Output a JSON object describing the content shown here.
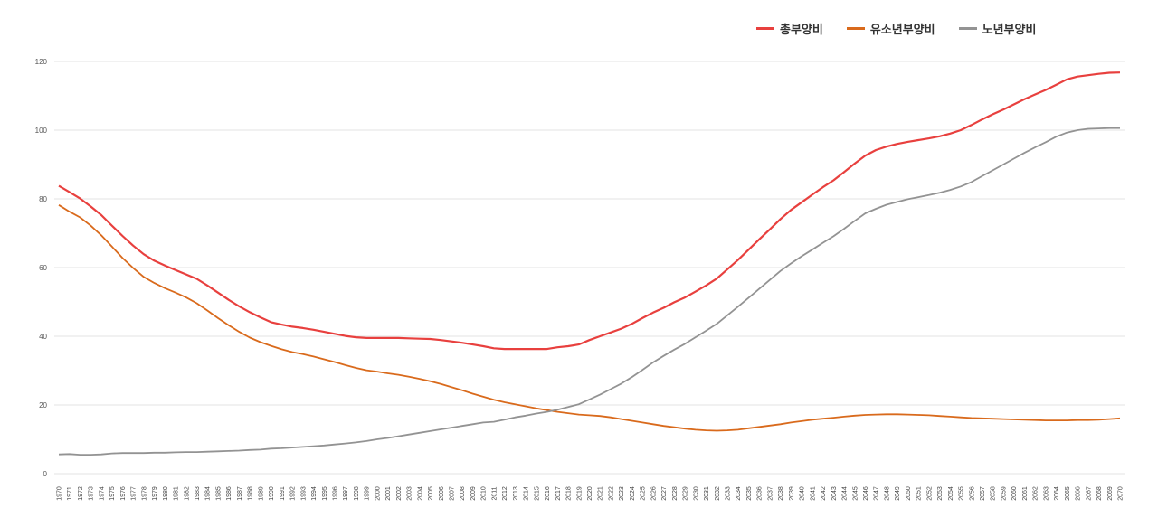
{
  "chart_data": {
    "type": "line",
    "title": "",
    "xlabel": "",
    "ylabel": "",
    "ylim": [
      0,
      120
    ],
    "yticks": [
      0,
      20,
      40,
      60,
      80,
      100,
      120
    ],
    "grid": true,
    "legend_position": "top-right",
    "x": [
      "1970",
      "1971",
      "1972",
      "1973",
      "1974",
      "1975",
      "1976",
      "1977",
      "1978",
      "1979",
      "1980",
      "1981",
      "1982",
      "1983",
      "1984",
      "1985",
      "1986",
      "1987",
      "1988",
      "1989",
      "1990",
      "1991",
      "1992",
      "1993",
      "1994",
      "1995",
      "1996",
      "1997",
      "1998",
      "1999",
      "2000",
      "2001",
      "2002",
      "2003",
      "2004",
      "2005",
      "2006",
      "2007",
      "2008",
      "2009",
      "2010",
      "2011",
      "2012",
      "2013",
      "2014",
      "2015",
      "2016",
      "2017",
      "2018",
      "2019",
      "2020",
      "2021",
      "2022",
      "2023",
      "2024",
      "2025",
      "2026",
      "2027",
      "2028",
      "2029",
      "2030",
      "2031",
      "2032",
      "2033",
      "2034",
      "2035",
      "2036",
      "2037",
      "2038",
      "2039",
      "2040",
      "2041",
      "2042",
      "2043",
      "2044",
      "2045",
      "2046",
      "2047",
      "2048",
      "2049",
      "2050",
      "2051",
      "2052",
      "2053",
      "2054",
      "2055",
      "2056",
      "2057",
      "2058",
      "2059",
      "2060",
      "2061",
      "2062",
      "2063",
      "2064",
      "2065",
      "2066",
      "2067",
      "2068",
      "2069",
      "2070"
    ],
    "series": [
      {
        "name": "총부양비",
        "color": "#e8403e",
        "values": [
          83.8,
          82,
          80.1,
          77.8,
          75.3,
          72.2,
          69.2,
          66.4,
          63.9,
          62,
          60.6,
          59.3,
          58,
          56.7,
          54.8,
          52.7,
          50.6,
          48.7,
          47,
          45.5,
          44.1,
          43.4,
          42.8,
          42.4,
          41.9,
          41.3,
          40.7,
          40.1,
          39.7,
          39.5,
          39.5,
          39.5,
          39.5,
          39.4,
          39.3,
          39.2,
          38.9,
          38.5,
          38.1,
          37.6,
          37.1,
          36.5,
          36.3,
          36.3,
          36.3,
          36.3,
          36.3,
          36.8,
          37.1,
          37.6,
          38.9,
          40,
          41.1,
          42.2,
          43.6,
          45.3,
          46.9,
          48.3,
          49.9,
          51.3,
          53,
          54.8,
          56.8,
          59.5,
          62.2,
          65.2,
          68.2,
          71.1,
          74.1,
          76.8,
          79,
          81.2,
          83.4,
          85.4,
          87.8,
          90.3,
          92.6,
          94.2,
          95.2,
          96,
          96.6,
          97.1,
          97.6,
          98.2,
          99,
          100,
          101.5,
          103.1,
          104.6,
          106,
          107.5,
          109,
          110.4,
          111.7,
          113.2,
          114.8,
          115.6,
          116,
          116.4,
          116.7,
          116.8
        ]
      },
      {
        "name": "유소년부양비",
        "color": "#d96a1c",
        "values": [
          78.2,
          76.3,
          74.6,
          72.2,
          69.4,
          66.1,
          62.8,
          59.9,
          57.3,
          55.5,
          54,
          52.7,
          51.3,
          49.6,
          47.5,
          45.3,
          43.2,
          41.3,
          39.6,
          38.3,
          37.2,
          36.2,
          35.4,
          34.8,
          34.1,
          33.3,
          32.5,
          31.6,
          30.8,
          30.1,
          29.7,
          29.2,
          28.8,
          28.2,
          27.6,
          26.9,
          26.1,
          25.2,
          24.3,
          23.3,
          22.4,
          21.5,
          20.8,
          20.2,
          19.6,
          19,
          18.5,
          18,
          17.6,
          17.2,
          17,
          16.8,
          16.4,
          15.9,
          15.4,
          14.9,
          14.4,
          13.9,
          13.5,
          13.1,
          12.8,
          12.6,
          12.5,
          12.6,
          12.8,
          13.2,
          13.6,
          14,
          14.4,
          14.9,
          15.3,
          15.7,
          16,
          16.3,
          16.6,
          16.9,
          17.1,
          17.2,
          17.3,
          17.3,
          17.2,
          17.1,
          17,
          16.8,
          16.6,
          16.4,
          16.2,
          16.1,
          16,
          15.9,
          15.8,
          15.7,
          15.6,
          15.5,
          15.5,
          15.5,
          15.6,
          15.6,
          15.7,
          15.9,
          16.1
        ]
      },
      {
        "name": "노년부양비",
        "color": "#939393",
        "values": [
          5.6,
          5.7,
          5.5,
          5.5,
          5.6,
          5.9,
          6,
          6,
          6,
          6.1,
          6.1,
          6.2,
          6.3,
          6.3,
          6.4,
          6.5,
          6.6,
          6.7,
          6.9,
          7,
          7.3,
          7.4,
          7.6,
          7.8,
          8,
          8.2,
          8.5,
          8.8,
          9.1,
          9.5,
          10,
          10.4,
          10.9,
          11.4,
          11.9,
          12.4,
          12.9,
          13.4,
          13.9,
          14.4,
          14.9,
          15.1,
          15.7,
          16.4,
          16.9,
          17.5,
          18,
          18.6,
          19.4,
          20.2,
          21.6,
          23,
          24.6,
          26.2,
          28.1,
          30.2,
          32.4,
          34.3,
          36.1,
          37.8,
          39.7,
          41.6,
          43.6,
          46.1,
          48.6,
          51.2,
          53.8,
          56.4,
          59,
          61.2,
          63.3,
          65.2,
          67.2,
          69.1,
          71.3,
          73.6,
          75.8,
          77.1,
          78.3,
          79.1,
          79.9,
          80.5,
          81.1,
          81.8,
          82.6,
          83.6,
          84.9,
          86.6,
          88.3,
          90,
          91.7,
          93.4,
          95,
          96.5,
          98.1,
          99.3,
          100,
          100.4,
          100.5,
          100.6,
          100.6
        ]
      }
    ]
  }
}
